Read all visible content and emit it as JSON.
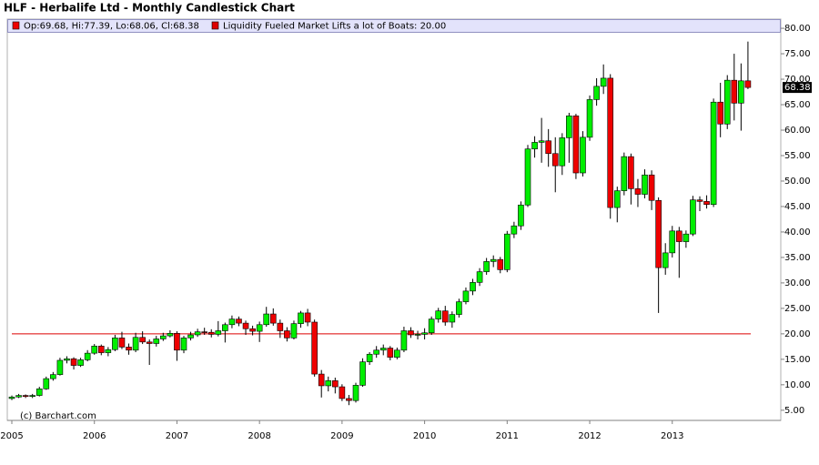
{
  "chart_data": {
    "type": "candlestick",
    "title": "HLF - Herbalife Ltd - Monthly Candlestick Chart",
    "credit": "(c) Barchart.com",
    "legend_label": "Op:69.68, Hi:77.39, Lo:68.06, Cl:68.38",
    "last_value_label": "68.38",
    "reference_line": {
      "label": "Liquidity Fueled Market Lifts a lot of Boats: 20.00",
      "value": 20,
      "color": "#dd0000"
    },
    "up_color": "#00ee00",
    "down_color": "#ee0000",
    "categories": [
      "2005",
      null,
      null,
      null,
      null,
      null,
      null,
      null,
      null,
      null,
      null,
      null,
      "2006",
      null,
      null,
      null,
      null,
      null,
      null,
      null,
      null,
      null,
      null,
      null,
      "2007",
      null,
      null,
      null,
      null,
      null,
      null,
      null,
      null,
      null,
      null,
      null,
      "2008",
      null,
      null,
      null,
      null,
      null,
      null,
      null,
      null,
      null,
      null,
      null,
      "2009",
      null,
      null,
      null,
      null,
      null,
      null,
      null,
      null,
      null,
      null,
      null,
      "2010",
      null,
      null,
      null,
      null,
      null,
      null,
      null,
      null,
      null,
      null,
      null,
      "2011",
      null,
      null,
      null,
      null,
      null,
      null,
      null,
      null,
      null,
      null,
      null,
      "2012",
      null,
      null,
      null,
      null,
      null,
      null,
      null,
      null,
      null,
      null,
      null,
      "2013",
      null,
      null,
      null,
      null,
      null,
      null,
      null,
      null,
      null,
      null,
      null
    ],
    "open": [
      7.3,
      7.6,
      7.9,
      7.7,
      7.9,
      9.2,
      11.2,
      12.0,
      14.8,
      15.1,
      13.8,
      14.9,
      16.2,
      17.6,
      16.3,
      16.9,
      19.2,
      17.4,
      16.8,
      19.3,
      18.4,
      18.1,
      19.0,
      19.6,
      20.1,
      16.8,
      19.2,
      19.8,
      20.4,
      20.3,
      19.9,
      20.6,
      21.8,
      22.9,
      22.1,
      21.0,
      20.5,
      21.8,
      23.9,
      22.1,
      20.6,
      19.2,
      22.0,
      24.1,
      22.3,
      12.1,
      9.8,
      10.8,
      9.6,
      7.3,
      6.9,
      9.9,
      14.5,
      16.0,
      16.8,
      17.2,
      15.4,
      16.8,
      20.6,
      19.8,
      19.9,
      20.2,
      22.9,
      24.5,
      22.3,
      23.8,
      26.3,
      28.4,
      30.1,
      32.2,
      34.2,
      34.6,
      32.6,
      39.6,
      41.2,
      45.3,
      56.3,
      57.6,
      57.9,
      55.4,
      53.0,
      58.5,
      62.8,
      51.6,
      58.6,
      66.0,
      68.6,
      70.2,
      44.8,
      48.1,
      54.8,
      48.5,
      47.4,
      51.2,
      46.2,
      33.0,
      35.9,
      40.2,
      38.1,
      39.6,
      46.3,
      46.0,
      45.4,
      65.5,
      61.2,
      69.8,
      65.3,
      69.68
    ],
    "high": [
      7.9,
      8.2,
      8.1,
      8.2,
      9.6,
      11.6,
      12.5,
      15.3,
      15.6,
      15.4,
      15.3,
      16.8,
      18.0,
      17.9,
      17.4,
      19.8,
      20.4,
      18.1,
      20.2,
      20.5,
      18.9,
      19.6,
      20.2,
      20.7,
      20.5,
      19.6,
      20.4,
      21.0,
      21.2,
      20.9,
      22.5,
      22.2,
      23.6,
      23.4,
      22.6,
      21.6,
      22.4,
      25.3,
      25.0,
      22.8,
      21.3,
      22.6,
      24.5,
      24.9,
      22.8,
      12.9,
      11.6,
      11.4,
      10.1,
      8.0,
      10.4,
      15.2,
      16.4,
      17.6,
      17.9,
      17.6,
      17.3,
      21.4,
      21.3,
      20.6,
      21.1,
      23.4,
      25.1,
      25.5,
      24.4,
      26.9,
      29.1,
      30.8,
      32.9,
      34.9,
      35.4,
      35.1,
      40.2,
      42.0,
      46.0,
      57.1,
      58.8,
      62.4,
      60.2,
      58.6,
      59.4,
      63.4,
      63.2,
      59.8,
      66.8,
      70.2,
      72.9,
      71.0,
      48.9,
      55.6,
      55.4,
      50.4,
      52.3,
      52.1,
      46.8,
      37.8,
      41.2,
      41.0,
      40.3,
      47.1,
      47.0,
      47.2,
      66.2,
      69.3,
      70.8,
      75.0,
      73.1,
      77.39
    ],
    "low": [
      7.0,
      7.4,
      7.4,
      7.4,
      7.7,
      9.0,
      10.8,
      11.8,
      14.2,
      13.0,
      13.5,
      14.6,
      15.9,
      15.8,
      15.6,
      16.6,
      17.0,
      15.9,
      16.4,
      18.0,
      13.9,
      17.5,
      18.6,
      19.3,
      14.7,
      16.2,
      18.7,
      19.4,
      19.8,
      19.3,
      19.5,
      18.3,
      21.1,
      21.5,
      19.8,
      19.7,
      18.4,
      21.4,
      21.6,
      19.2,
      18.5,
      18.9,
      21.2,
      21.5,
      11.6,
      7.5,
      8.7,
      8.3,
      6.8,
      6.0,
      6.5,
      9.6,
      13.9,
      15.3,
      15.8,
      14.8,
      15.0,
      16.4,
      19.2,
      18.9,
      18.9,
      19.8,
      22.2,
      21.6,
      21.2,
      23.2,
      25.8,
      27.6,
      29.4,
      31.6,
      33.1,
      31.9,
      32.1,
      38.8,
      40.4,
      44.9,
      54.6,
      53.6,
      52.8,
      47.8,
      51.2,
      53.6,
      50.4,
      50.9,
      57.9,
      64.8,
      67.1,
      42.6,
      41.9,
      47.2,
      45.4,
      44.9,
      46.6,
      44.3,
      24.1,
      31.6,
      35.0,
      31.0,
      36.9,
      39.2,
      44.1,
      44.6,
      44.9,
      58.6,
      60.2,
      61.9,
      59.9,
      68.06
    ],
    "close": [
      7.6,
      7.9,
      7.7,
      7.9,
      9.2,
      11.2,
      12.0,
      14.8,
      15.1,
      13.8,
      14.9,
      16.2,
      17.6,
      16.3,
      16.9,
      19.2,
      17.4,
      16.8,
      19.3,
      18.4,
      18.1,
      19.0,
      19.6,
      20.1,
      16.8,
      19.2,
      19.8,
      20.4,
      20.3,
      19.9,
      20.6,
      21.8,
      22.9,
      22.1,
      21.0,
      20.5,
      21.8,
      23.9,
      22.1,
      20.6,
      19.2,
      22.0,
      24.1,
      22.3,
      12.1,
      9.8,
      10.8,
      9.6,
      7.3,
      6.9,
      9.9,
      14.5,
      16.0,
      16.8,
      17.2,
      15.4,
      16.8,
      20.6,
      19.8,
      19.9,
      20.2,
      22.9,
      24.5,
      22.3,
      23.8,
      26.3,
      28.4,
      30.1,
      32.2,
      34.2,
      34.6,
      32.6,
      39.6,
      41.2,
      45.3,
      56.3,
      57.6,
      57.9,
      55.4,
      53.0,
      58.5,
      62.8,
      51.6,
      58.6,
      66.0,
      68.6,
      70.2,
      44.8,
      48.1,
      54.8,
      48.5,
      47.4,
      51.2,
      46.2,
      33.0,
      35.9,
      40.2,
      38.1,
      39.6,
      46.3,
      46.0,
      45.4,
      65.5,
      61.2,
      69.8,
      65.3,
      69.68,
      68.38
    ],
    "ylim": [
      3.0,
      81.8
    ],
    "yticks": [
      {
        "value": 5,
        "label": "5.00"
      },
      {
        "value": 10,
        "label": "10.00"
      },
      {
        "value": 15,
        "label": "15.00"
      },
      {
        "value": 20,
        "label": "20.00"
      },
      {
        "value": 25,
        "label": "25.00"
      },
      {
        "value": 30,
        "label": "30.00"
      },
      {
        "value": 35,
        "label": "35.00"
      },
      {
        "value": 40,
        "label": "40.00"
      },
      {
        "value": 45,
        "label": "45.00"
      },
      {
        "value": 50,
        "label": "50.00"
      },
      {
        "value": 55,
        "label": "55.00"
      },
      {
        "value": 60,
        "label": "60.00"
      },
      {
        "value": 65,
        "label": "65.00"
      },
      {
        "value": 70,
        "label": "70.00"
      },
      {
        "value": 75,
        "label": "75.00"
      },
      {
        "value": 80,
        "label": "80.00"
      }
    ],
    "grid": false
  }
}
